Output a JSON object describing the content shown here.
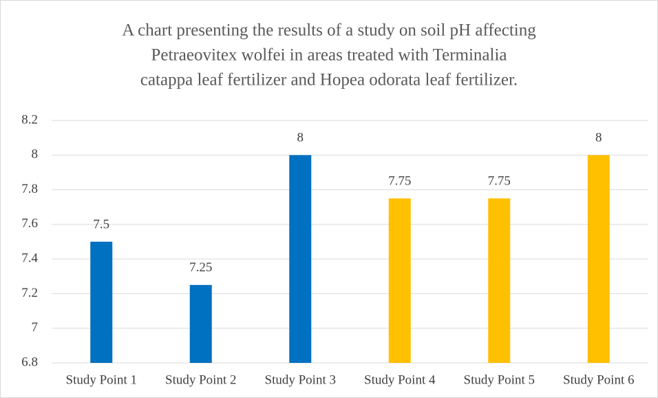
{
  "chart_data": {
    "type": "bar",
    "title": [
      "A chart presenting the results of a study on soil pH affecting",
      "Petraeovitex wolfei in areas treated with Terminalia",
      "catappa leaf fertilizer and Hopea odorata leaf fertilizer."
    ],
    "categories": [
      "Study Point 1",
      "Study Point 2",
      "Study Point 3",
      "Study Point 4",
      "Study Point 5",
      "Study Point 6"
    ],
    "values": [
      7.5,
      7.25,
      8,
      7.75,
      7.75,
      8
    ],
    "colors": [
      "#0070c0",
      "#0070c0",
      "#0070c0",
      "#ffc000",
      "#ffc000",
      "#ffc000"
    ],
    "ylim": [
      6.8,
      8.2
    ],
    "yticks": [
      6.8,
      7,
      7.2,
      7.4,
      7.6,
      7.8,
      8,
      8.2
    ],
    "grid": true
  }
}
